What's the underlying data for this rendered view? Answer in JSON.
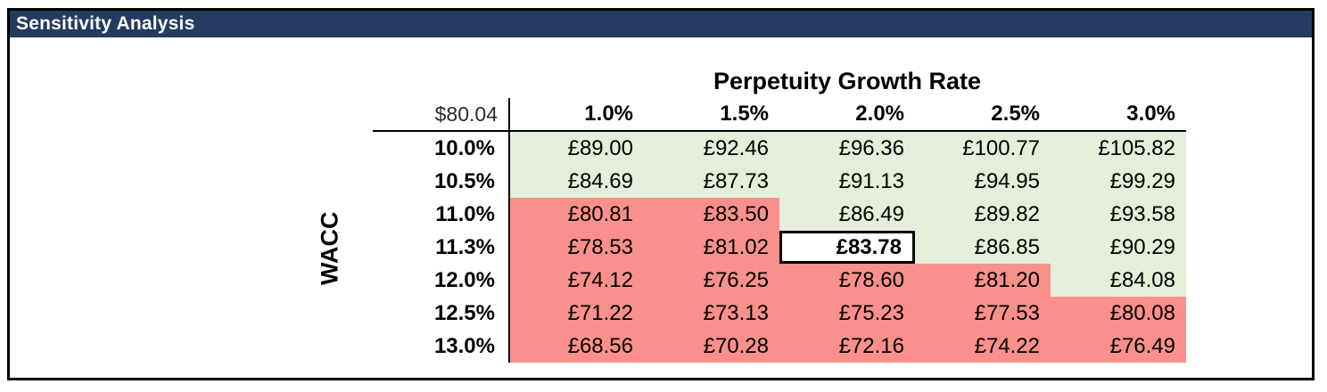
{
  "window": {
    "title": "Sensitivity Analysis"
  },
  "table": {
    "title": "Perpetuity Growth Rate",
    "row_axis_label": "WACC",
    "corner_value": "$80.04",
    "column_headers": [
      "1.0%",
      "1.5%",
      "2.0%",
      "2.5%",
      "3.0%"
    ],
    "rows": [
      {
        "label": "10.0%",
        "cells": [
          {
            "display": "£89.00",
            "state": "green"
          },
          {
            "display": "£92.46",
            "state": "green"
          },
          {
            "display": "£96.36",
            "state": "green"
          },
          {
            "display": "£100.77",
            "state": "green"
          },
          {
            "display": "£105.82",
            "state": "green"
          }
        ]
      },
      {
        "label": "10.5%",
        "cells": [
          {
            "display": "£84.69",
            "state": "green"
          },
          {
            "display": "£87.73",
            "state": "green"
          },
          {
            "display": "£91.13",
            "state": "green"
          },
          {
            "display": "£94.95",
            "state": "green"
          },
          {
            "display": "£99.29",
            "state": "green"
          }
        ]
      },
      {
        "label": "11.0%",
        "cells": [
          {
            "display": "£80.81",
            "state": "red"
          },
          {
            "display": "£83.50",
            "state": "red"
          },
          {
            "display": "£86.49",
            "state": "green"
          },
          {
            "display": "£89.82",
            "state": "green"
          },
          {
            "display": "£93.58",
            "state": "green"
          }
        ]
      },
      {
        "label": "11.3%",
        "cells": [
          {
            "display": "£78.53",
            "state": "red"
          },
          {
            "display": "£81.02",
            "state": "red"
          },
          {
            "display": "£83.78",
            "state": "highlight"
          },
          {
            "display": "£86.85",
            "state": "green"
          },
          {
            "display": "£90.29",
            "state": "green"
          }
        ]
      },
      {
        "label": "12.0%",
        "cells": [
          {
            "display": "£74.12",
            "state": "red"
          },
          {
            "display": "£76.25",
            "state": "red"
          },
          {
            "display": "£78.60",
            "state": "red"
          },
          {
            "display": "£81.20",
            "state": "red"
          },
          {
            "display": "£84.08",
            "state": "green"
          }
        ]
      },
      {
        "label": "12.5%",
        "cells": [
          {
            "display": "£71.22",
            "state": "red"
          },
          {
            "display": "£73.13",
            "state": "red"
          },
          {
            "display": "£75.23",
            "state": "red"
          },
          {
            "display": "£77.53",
            "state": "red"
          },
          {
            "display": "£80.08",
            "state": "red"
          }
        ]
      },
      {
        "label": "13.0%",
        "cells": [
          {
            "display": "£68.56",
            "state": "red"
          },
          {
            "display": "£70.28",
            "state": "red"
          },
          {
            "display": "£72.16",
            "state": "red"
          },
          {
            "display": "£74.22",
            "state": "red"
          },
          {
            "display": "£76.49",
            "state": "red"
          }
        ]
      }
    ]
  },
  "colors": {
    "header_bar": "#243a60",
    "above_fill": "#e4eeda",
    "below_fill": "#f9908b",
    "highlight_fill": "#ffffff",
    "border": "#000000"
  },
  "chart_data": {
    "type": "table",
    "title": "Sensitivity Analysis",
    "column_axis_label": "Perpetuity Growth Rate",
    "row_axis_label": "WACC",
    "corner_reference_value": "$80.04",
    "currency": "£",
    "columns": [
      "1.0%",
      "1.5%",
      "2.0%",
      "2.5%",
      "3.0%"
    ],
    "rows": [
      "10.0%",
      "10.5%",
      "11.0%",
      "11.3%",
      "12.0%",
      "12.5%",
      "13.0%"
    ],
    "values": [
      [
        89.0,
        92.46,
        96.36,
        100.77,
        105.82
      ],
      [
        84.69,
        87.73,
        91.13,
        94.95,
        99.29
      ],
      [
        80.81,
        83.5,
        86.49,
        89.82,
        93.58
      ],
      [
        78.53,
        81.02,
        83.78,
        86.85,
        90.29
      ],
      [
        74.12,
        76.25,
        78.6,
        81.2,
        84.08
      ],
      [
        71.22,
        73.13,
        75.23,
        77.53,
        80.08
      ],
      [
        68.56,
        70.28,
        72.16,
        74.22,
        76.49
      ]
    ],
    "cell_states": [
      [
        "green",
        "green",
        "green",
        "green",
        "green"
      ],
      [
        "green",
        "green",
        "green",
        "green",
        "green"
      ],
      [
        "red",
        "red",
        "green",
        "green",
        "green"
      ],
      [
        "red",
        "red",
        "highlight",
        "green",
        "green"
      ],
      [
        "red",
        "red",
        "red",
        "red",
        "green"
      ],
      [
        "red",
        "red",
        "red",
        "red",
        "red"
      ],
      [
        "red",
        "red",
        "red",
        "red",
        "red"
      ]
    ],
    "highlighted_cell": {
      "row": "11.3%",
      "column": "2.0%",
      "value": 83.78
    },
    "legend_hint": "green fill = value above highlighted base case, red fill = below"
  }
}
